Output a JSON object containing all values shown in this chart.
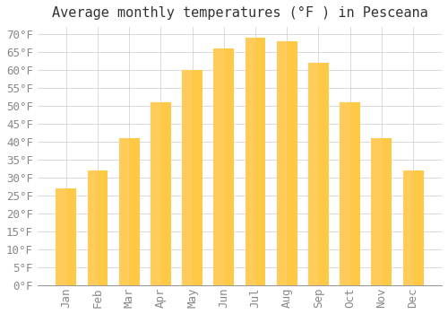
{
  "title": "Average monthly temperatures (°F ) in Pesceana",
  "months": [
    "Jan",
    "Feb",
    "Mar",
    "Apr",
    "May",
    "Jun",
    "Jul",
    "Aug",
    "Sep",
    "Oct",
    "Nov",
    "Dec"
  ],
  "values": [
    27,
    32,
    41,
    51,
    60,
    66,
    69,
    68,
    62,
    51,
    41,
    32
  ],
  "bar_color_top": "#FFC845",
  "bar_color_bottom": "#FFB020",
  "background_color": "#FFFFFF",
  "plot_bg_color": "#FFFFFF",
  "grid_color": "#CCCCCC",
  "ylim": [
    0,
    72
  ],
  "yticks": [
    0,
    5,
    10,
    15,
    20,
    25,
    30,
    35,
    40,
    45,
    50,
    55,
    60,
    65,
    70
  ],
  "title_fontsize": 11,
  "tick_fontsize": 9,
  "title_color": "#333333",
  "tick_color": "#888888",
  "bar_width": 0.65
}
